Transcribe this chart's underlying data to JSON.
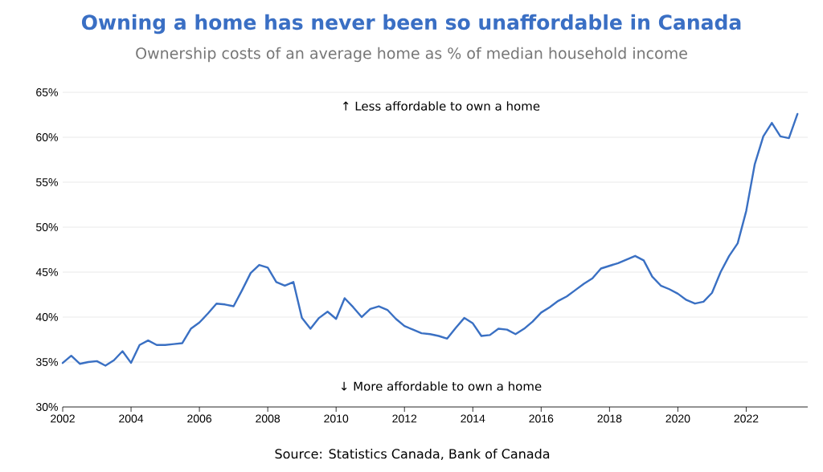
{
  "chart_data": {
    "type": "line",
    "title": "Owning a home has never been so unaffordable in Canada",
    "subtitle": "Ownership costs of an average home as % of median household income",
    "annotations": [
      "↑ Less affordable to own a home",
      "↓ More affordable to own a home",
      "Source: Statistics Canada, Bank of Canada"
    ],
    "x": [
      2002.0,
      2002.25,
      2002.5,
      2002.75,
      2003.0,
      2003.25,
      2003.5,
      2003.75,
      2004.0,
      2004.25,
      2004.5,
      2004.75,
      2005.0,
      2005.25,
      2005.5,
      2005.75,
      2006.0,
      2006.25,
      2006.5,
      2006.75,
      2007.0,
      2007.25,
      2007.5,
      2007.75,
      2008.0,
      2008.25,
      2008.5,
      2008.75,
      2009.0,
      2009.25,
      2009.5,
      2009.75,
      2010.0,
      2010.25,
      2010.5,
      2010.75,
      2011.0,
      2011.25,
      2011.5,
      2011.75,
      2012.0,
      2012.25,
      2012.5,
      2012.75,
      2013.0,
      2013.25,
      2013.5,
      2013.75,
      2014.0,
      2014.25,
      2014.5,
      2014.75,
      2015.0,
      2015.25,
      2015.5,
      2015.75,
      2016.0,
      2016.25,
      2016.5,
      2016.75,
      2017.0,
      2017.25,
      2017.5,
      2017.75,
      2018.0,
      2018.25,
      2018.5,
      2018.75,
      2019.0,
      2019.25,
      2019.5,
      2019.75,
      2020.0,
      2020.25,
      2020.5,
      2020.75,
      2021.0,
      2021.25,
      2021.5,
      2021.75,
      2022.0,
      2022.25,
      2022.5,
      2022.75,
      2023.0,
      2023.25,
      2023.5
    ],
    "series": [
      {
        "color": "#3a70c3",
        "values": [
          34.9,
          35.7,
          34.8,
          35.0,
          35.1,
          34.6,
          35.2,
          36.2,
          34.9,
          36.9,
          37.4,
          36.9,
          36.9,
          37.0,
          37.1,
          38.7,
          39.4,
          40.4,
          41.5,
          41.4,
          41.2,
          43.0,
          44.9,
          45.8,
          45.5,
          43.9,
          43.5,
          43.9,
          39.9,
          38.7,
          39.9,
          40.6,
          39.8,
          42.1,
          41.1,
          40.0,
          40.9,
          41.2,
          40.8,
          39.8,
          39.0,
          38.6,
          38.2,
          38.1,
          37.9,
          37.6,
          38.8,
          39.9,
          39.3,
          37.9,
          38.0,
          38.7,
          38.6,
          38.1,
          38.7,
          39.5,
          40.5,
          41.1,
          41.8,
          42.3,
          43.0,
          43.7,
          44.3,
          45.4,
          45.7,
          46.0,
          46.4,
          46.8,
          46.3,
          44.5,
          43.5,
          43.1,
          42.6,
          41.9,
          41.5,
          41.7,
          42.7,
          45.0,
          46.8,
          48.2,
          51.8,
          57.0,
          60.1,
          61.6,
          60.1,
          59.9,
          62.6
        ]
      }
    ],
    "xlim": [
      2002,
      2023.8
    ],
    "xticks": [
      2002,
      2004,
      2006,
      2008,
      2010,
      2012,
      2014,
      2016,
      2018,
      2020,
      2022
    ],
    "ylim": [
      30,
      65
    ],
    "yticks": [
      {
        "value": 30,
        "label": "30%"
      },
      {
        "value": 35,
        "label": "35%"
      },
      {
        "value": 40,
        "label": "40%"
      },
      {
        "value": 45,
        "label": "45%"
      },
      {
        "value": 50,
        "label": "50%"
      },
      {
        "value": 55,
        "label": "55%"
      },
      {
        "value": 60,
        "label": "60%"
      },
      {
        "value": 65,
        "label": "65%"
      }
    ],
    "grid": "y"
  }
}
